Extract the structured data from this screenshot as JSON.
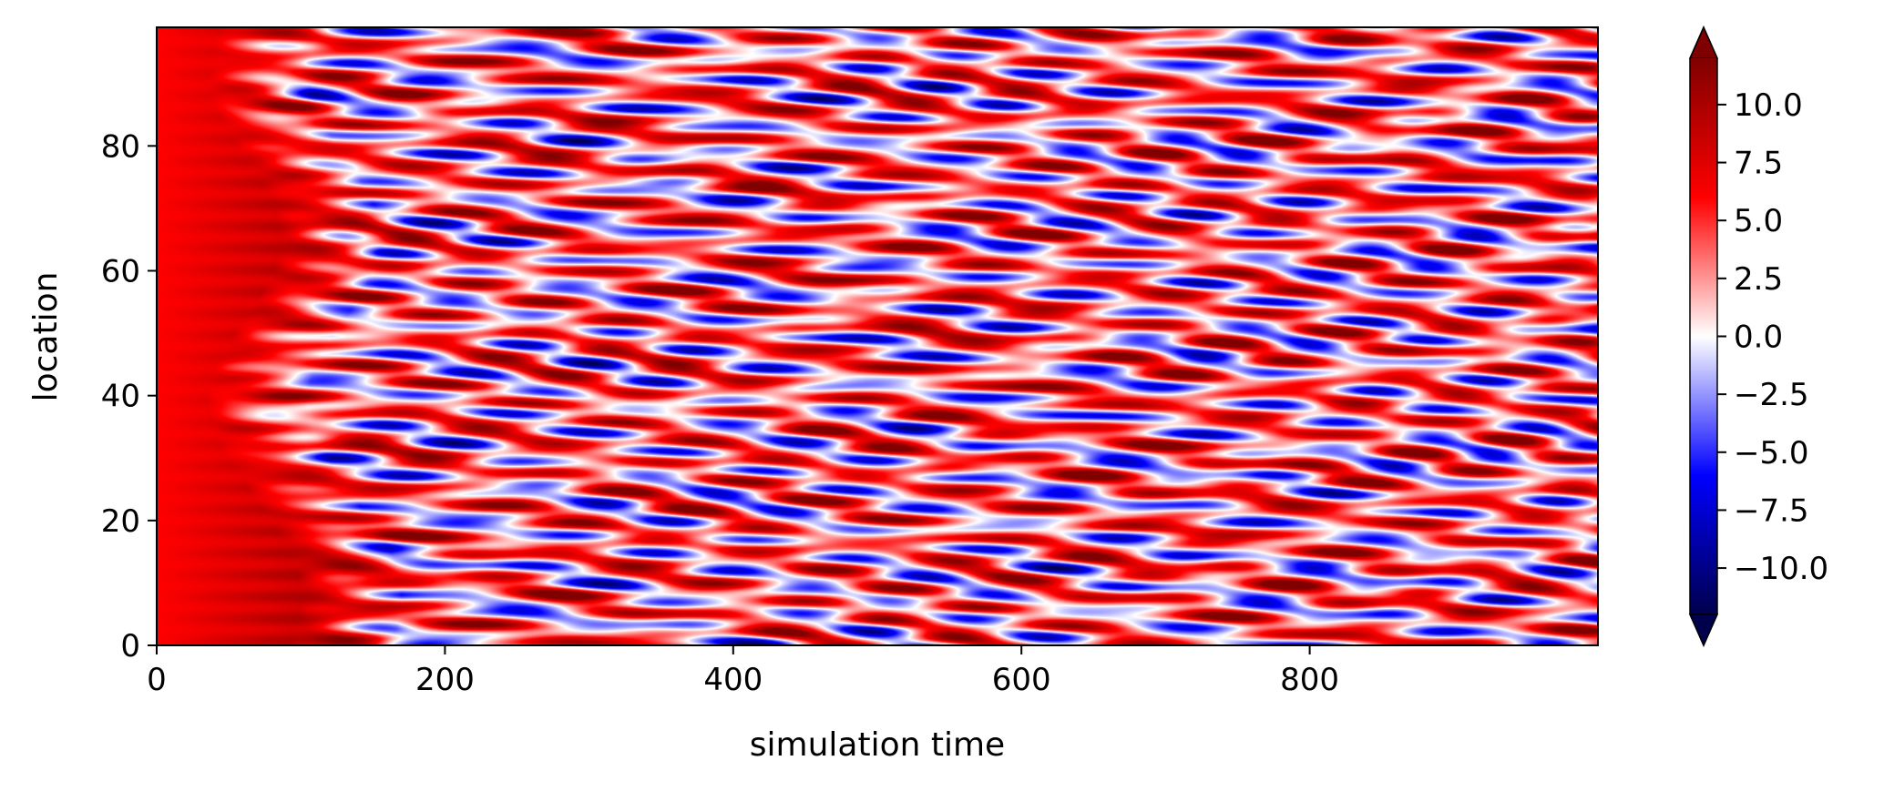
{
  "chart_data": {
    "type": "heatmap",
    "title": "",
    "xlabel": "simulation time",
    "ylabel": "location",
    "xlim": [
      0,
      1000
    ],
    "ylim": [
      0,
      99
    ],
    "x_ticks": [
      0,
      200,
      400,
      600,
      800
    ],
    "x_tick_labels": [
      "0",
      "200",
      "400",
      "600",
      "800"
    ],
    "y_ticks": [
      0,
      20,
      40,
      60,
      80
    ],
    "y_tick_labels": [
      "0",
      "20",
      "40",
      "60",
      "80"
    ],
    "colorbar": {
      "colormap": "seismic",
      "vmin": -12,
      "vmax": 12,
      "extend": "both",
      "ticks": [
        10.0,
        7.5,
        5.0,
        2.5,
        0.0,
        -2.5,
        -5.0,
        -7.5,
        -10.0
      ],
      "tick_labels": [
        "10.0",
        "7.5",
        "5.0",
        "2.5",
        "0.0",
        "−2.5",
        "−5.0",
        "−7.5",
        "−10.0"
      ]
    },
    "grid": false,
    "description_values": {
      "initial_transient_value": 6,
      "transient_end_time": 120,
      "value_range": [
        -11,
        12
      ]
    }
  },
  "colors": {
    "positive_max": "#800000",
    "positive_mid": "#ff0000",
    "zero": "#ffffff",
    "negative_mid": "#0000ff",
    "negative_max": "#00004c"
  }
}
